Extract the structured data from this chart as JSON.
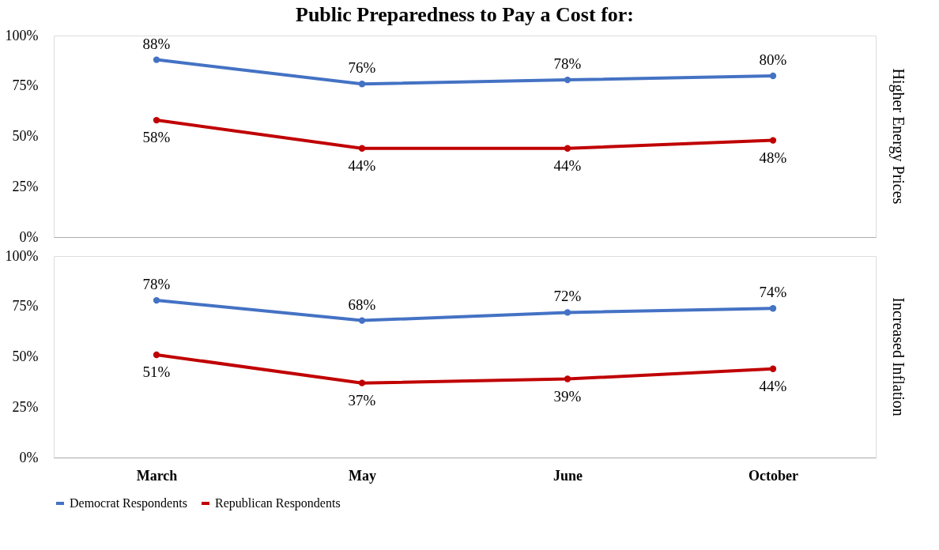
{
  "chart_data": [
    {
      "type": "line",
      "title": "Public Preparedness to Pay a Cost for:",
      "y2label": "Higher Energy Prices",
      "categories": [
        null,
        null,
        null,
        null
      ],
      "series": [
        {
          "color": "#4472c4",
          "values": [
            88,
            76,
            78,
            80
          ],
          "value_labels": [
            "88%",
            "76%",
            "78%",
            "80%"
          ]
        },
        {
          "color": "#c00000",
          "values": [
            58,
            44,
            44,
            48
          ],
          "value_labels": [
            "58%",
            "44%",
            "44%",
            "48%"
          ]
        }
      ],
      "ylim": [
        0,
        100
      ],
      "yticks": [
        {
          "value": 0,
          "label": "0%"
        },
        {
          "value": 25,
          "label": "25%"
        },
        {
          "value": 50,
          "label": "50%"
        },
        {
          "value": 75,
          "label": "75%"
        },
        {
          "value": 100,
          "label": "100%"
        }
      ],
      "tick_labels": "y",
      "marker": "circle",
      "grid": false,
      "legend": false
    },
    {
      "type": "line",
      "y2label": "Increased Inflation",
      "categories": [
        "March",
        "May",
        "June",
        "October"
      ],
      "series": [
        {
          "name": "Democrat Respondents",
          "color": "#4472c4",
          "values": [
            78,
            68,
            72,
            74
          ],
          "value_labels": [
            "78%",
            "68%",
            "72%",
            "74%"
          ]
        },
        {
          "name": "Republican Respondents",
          "color": "#c00000",
          "values": [
            51,
            37,
            39,
            44
          ],
          "value_labels": [
            "51%",
            "37%",
            "39%",
            "44%"
          ]
        }
      ],
      "ylim": [
        0,
        100
      ],
      "yticks": [
        {
          "value": 0,
          "label": "0%"
        },
        {
          "value": 25,
          "label": "25%"
        },
        {
          "value": 50,
          "label": "50%"
        },
        {
          "value": 75,
          "label": "75%"
        },
        {
          "value": 100,
          "label": "100%"
        }
      ],
      "marker": "circle",
      "grid": false,
      "legend": "bottom"
    }
  ]
}
